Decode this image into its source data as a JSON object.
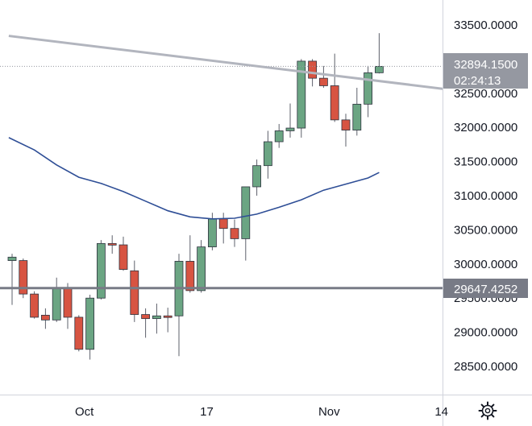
{
  "chart_data": {
    "type": "candlestick",
    "title": "",
    "xlabel": "",
    "ylabel": "",
    "ylim": [
      28150,
      33950
    ],
    "y_ticks": [
      28500,
      29000,
      29500,
      30000,
      30500,
      31000,
      31500,
      32000,
      32500,
      33000,
      33500
    ],
    "y_tick_labels": [
      "28500.0000",
      "29000.0000",
      "29500.0000",
      "30000.0000",
      "30500.0000",
      "31000.0000",
      "31500.0000",
      "32000.0000",
      "32500.0000",
      "33000.0000",
      "33500.0000"
    ],
    "x_tick_labels": [
      {
        "label": "Oct",
        "index": 6.5
      },
      {
        "label": "17",
        "index": 17.5
      },
      {
        "label": "Nov",
        "index": 28.5
      },
      {
        "label": "14",
        "index": 38.6
      }
    ],
    "candles": [
      {
        "o": 30050,
        "h": 30150,
        "l": 29400,
        "c": 30100
      },
      {
        "o": 30050,
        "h": 30080,
        "l": 29500,
        "c": 29560
      },
      {
        "o": 29560,
        "h": 29600,
        "l": 29200,
        "c": 29220
      },
      {
        "o": 29250,
        "h": 29350,
        "l": 29050,
        "c": 29180
      },
      {
        "o": 29180,
        "h": 29800,
        "l": 29150,
        "c": 29650
      },
      {
        "o": 29650,
        "h": 29720,
        "l": 29050,
        "c": 29220
      },
      {
        "o": 29220,
        "h": 29250,
        "l": 28720,
        "c": 28750
      },
      {
        "o": 28750,
        "h": 29550,
        "l": 28600,
        "c": 29500
      },
      {
        "o": 29500,
        "h": 30350,
        "l": 29480,
        "c": 30300
      },
      {
        "o": 30300,
        "h": 30420,
        "l": 30150,
        "c": 30280
      },
      {
        "o": 30280,
        "h": 30400,
        "l": 29900,
        "c": 29920
      },
      {
        "o": 29900,
        "h": 30050,
        "l": 29150,
        "c": 29260
      },
      {
        "o": 29260,
        "h": 29350,
        "l": 28920,
        "c": 29200
      },
      {
        "o": 29200,
        "h": 29420,
        "l": 28980,
        "c": 29240
      },
      {
        "o": 29240,
        "h": 29360,
        "l": 29000,
        "c": 29230
      },
      {
        "o": 29240,
        "h": 30150,
        "l": 28650,
        "c": 30040
      },
      {
        "o": 30040,
        "h": 30420,
        "l": 29580,
        "c": 29610
      },
      {
        "o": 29610,
        "h": 30350,
        "l": 29580,
        "c": 30250
      },
      {
        "o": 30250,
        "h": 30750,
        "l": 30200,
        "c": 30660
      },
      {
        "o": 30660,
        "h": 30750,
        "l": 30300,
        "c": 30520
      },
      {
        "o": 30520,
        "h": 30650,
        "l": 30250,
        "c": 30370
      },
      {
        "o": 30370,
        "h": 31120,
        "l": 30050,
        "c": 31130
      },
      {
        "o": 31130,
        "h": 31530,
        "l": 31000,
        "c": 31440
      },
      {
        "o": 31440,
        "h": 31950,
        "l": 31250,
        "c": 31790
      },
      {
        "o": 31790,
        "h": 32050,
        "l": 31700,
        "c": 31950
      },
      {
        "o": 31950,
        "h": 32350,
        "l": 31850,
        "c": 31990
      },
      {
        "o": 31990,
        "h": 33000,
        "l": 31850,
        "c": 32970
      },
      {
        "o": 32970,
        "h": 33000,
        "l": 32600,
        "c": 32720
      },
      {
        "o": 32720,
        "h": 32900,
        "l": 32580,
        "c": 32610
      },
      {
        "o": 32610,
        "h": 33080,
        "l": 32080,
        "c": 32110
      },
      {
        "o": 32110,
        "h": 32200,
        "l": 31720,
        "c": 31960
      },
      {
        "o": 31960,
        "h": 32580,
        "l": 31880,
        "c": 32340
      },
      {
        "o": 32340,
        "h": 32900,
        "l": 32150,
        "c": 32800
      },
      {
        "o": 32800,
        "h": 33380,
        "l": 32790,
        "c": 32894
      }
    ],
    "moving_average": [
      [
        -0.3,
        31850
      ],
      [
        2,
        31670
      ],
      [
        4,
        31450
      ],
      [
        6,
        31270
      ],
      [
        8,
        31180
      ],
      [
        10,
        31060
      ],
      [
        12,
        30920
      ],
      [
        14,
        30780
      ],
      [
        16,
        30690
      ],
      [
        18,
        30660
      ],
      [
        20,
        30670
      ],
      [
        22,
        30730
      ],
      [
        24,
        30830
      ],
      [
        26,
        30940
      ],
      [
        28,
        31080
      ],
      [
        30,
        31170
      ],
      [
        32,
        31260
      ],
      [
        33,
        31340
      ]
    ],
    "trendline": {
      "start": [
        -0.3,
        33340
      ],
      "end": [
        39.0,
        32560
      ]
    },
    "horizontal_level": 29647.4252,
    "colors": {
      "up": "#6ba583",
      "down": "#d75442",
      "wick": "#5d606b",
      "moving_average": "#2e4e96",
      "trendline": "#b2b5be",
      "horizontal_level": "#787b86",
      "price_tag": "#9598a1",
      "grid_border": "#d1d4dc"
    }
  },
  "price_axis": {
    "last_price_label": "32894.1500",
    "countdown_label": "02:24:13",
    "level_label": "29647.4252"
  },
  "toolbar": {
    "settings_icon": "gear-icon"
  }
}
